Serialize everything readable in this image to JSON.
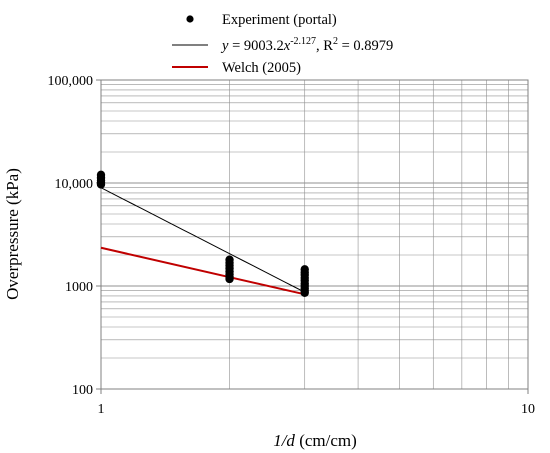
{
  "chart_data": {
    "type": "scatter",
    "x_scale": "log",
    "y_scale": "log",
    "xlim": [
      1,
      10
    ],
    "ylim": [
      100,
      100000
    ],
    "x_ticks": [
      1,
      10
    ],
    "x_tick_labels": [
      "1",
      "10"
    ],
    "y_ticks": [
      100,
      1000,
      10000,
      100000
    ],
    "y_tick_labels": [
      "100",
      "1000",
      "10,000",
      "100,000"
    ],
    "xlabel_italic": "1/d",
    "xlabel_rest": " (cm/cm)",
    "ylabel": "Overpressure (kPa)",
    "grid": "major and minor",
    "legend_position": "top-center",
    "series": [
      {
        "name": "Experiment (portal)",
        "kind": "points",
        "color": "#000000",
        "points": [
          {
            "x": 1,
            "y": 12000
          },
          {
            "x": 1,
            "y": 11200
          },
          {
            "x": 1,
            "y": 10600
          },
          {
            "x": 1,
            "y": 10100
          },
          {
            "x": 1,
            "y": 9700
          },
          {
            "x": 2,
            "y": 1800
          },
          {
            "x": 2,
            "y": 1680
          },
          {
            "x": 2,
            "y": 1580
          },
          {
            "x": 2,
            "y": 1480
          },
          {
            "x": 2,
            "y": 1380
          },
          {
            "x": 2,
            "y": 1300
          },
          {
            "x": 2,
            "y": 1230
          },
          {
            "x": 2,
            "y": 1170
          },
          {
            "x": 3,
            "y": 1450
          },
          {
            "x": 3,
            "y": 1360
          },
          {
            "x": 3,
            "y": 1280
          },
          {
            "x": 3,
            "y": 1200
          },
          {
            "x": 3,
            "y": 1130
          },
          {
            "x": 3,
            "y": 1060
          },
          {
            "x": 3,
            "y": 1000
          },
          {
            "x": 3,
            "y": 950
          },
          {
            "x": 3,
            "y": 900
          },
          {
            "x": 3,
            "y": 860
          }
        ]
      },
      {
        "name": "y = 9003.2x-2.127, R2 = 0.8979",
        "kind": "power-fit",
        "color": "#000000",
        "coefficient": 9003.2,
        "exponent": -2.127,
        "r2": 0.8979,
        "x_range": [
          1,
          3
        ]
      },
      {
        "name": "Welch (2005)",
        "kind": "line",
        "color": "#c00000",
        "x": [
          1,
          3
        ],
        "y": [
          2350,
          830
        ]
      }
    ],
    "legend": {
      "entry1": "Experiment (portal)",
      "fit_y": "y",
      "fit_eq_a": " = 9003.2",
      "fit_x": "x",
      "fit_exp": "-2.127",
      "fit_r": ", R",
      "fit_r_exp": "2",
      "fit_r_val": " = 0.8979",
      "entry3": "Welch (2005)"
    }
  }
}
